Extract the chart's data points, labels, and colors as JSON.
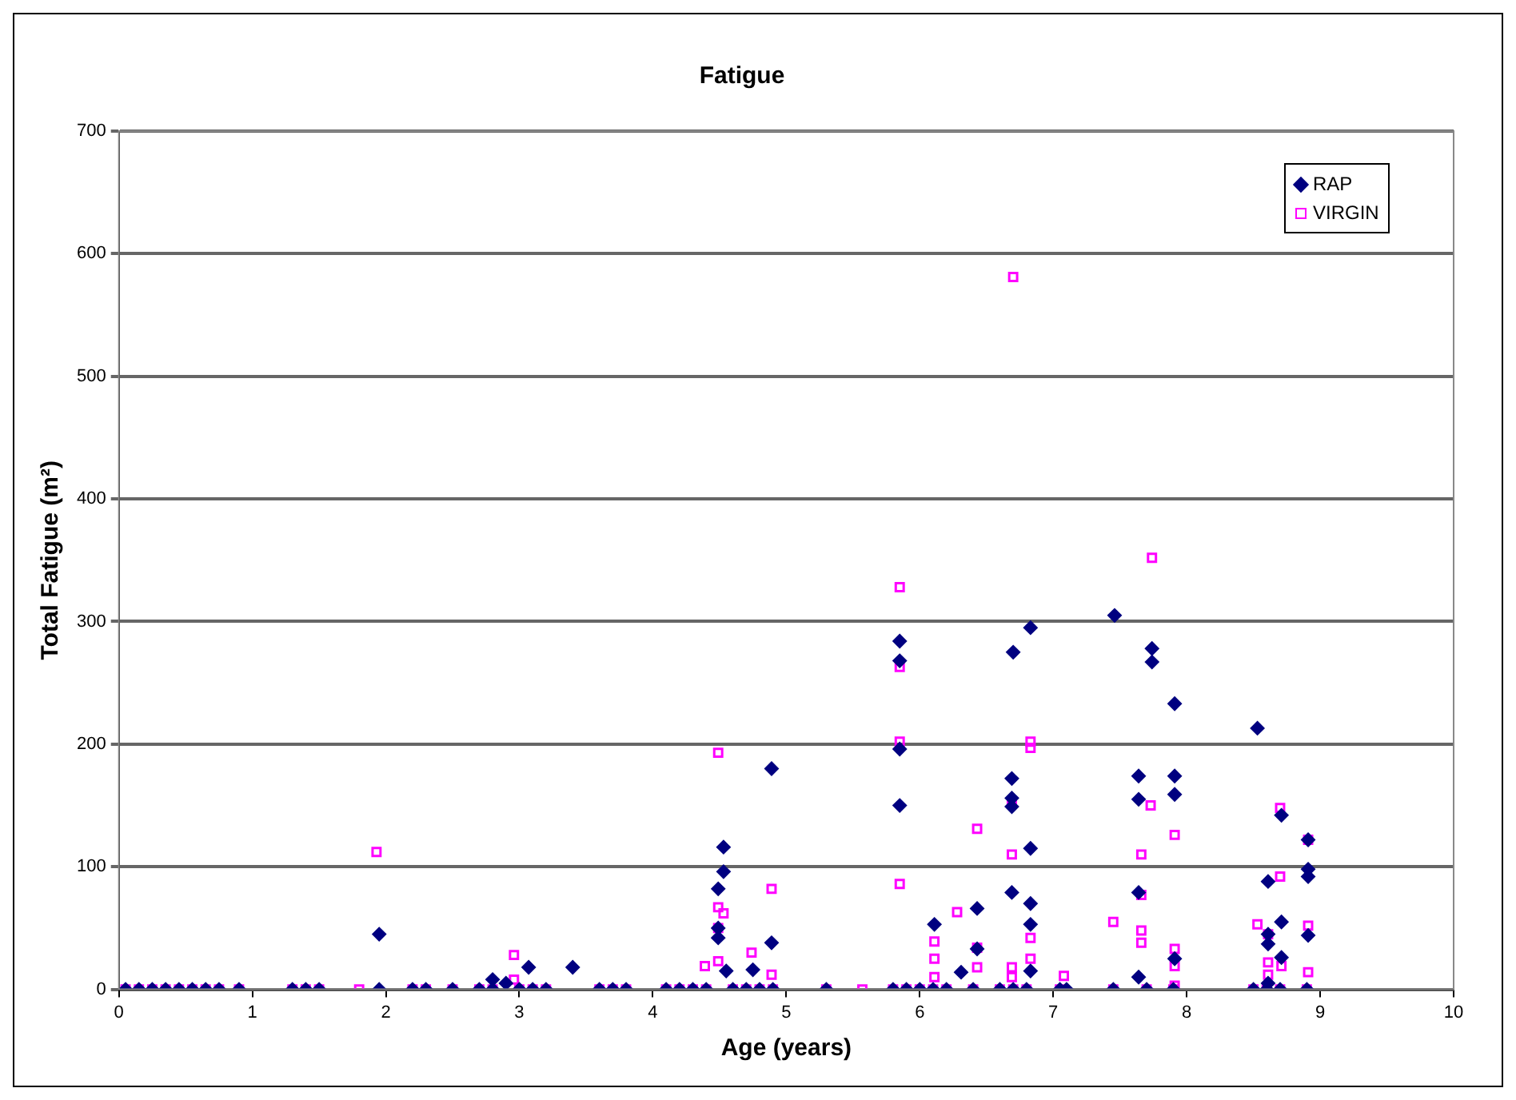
{
  "chart_data": {
    "type": "scatter",
    "title": "Fatigue",
    "xlabel": "Age (years)",
    "ylabel": "Total Fatigue (m²)",
    "xlim": [
      0,
      10
    ],
    "xticks": [
      0,
      1,
      2,
      3,
      4,
      5,
      6,
      7,
      8,
      9,
      10
    ],
    "ylim": [
      0,
      700
    ],
    "yticks": [
      0,
      100,
      200,
      300,
      400,
      500,
      600,
      700
    ],
    "grid": "y",
    "legend": "top right",
    "series": [
      {
        "name": "RAP",
        "color": "#000080",
        "marker": "diamond",
        "x": [
          0.05,
          0.15,
          0.25,
          0.35,
          0.45,
          0.55,
          0.65,
          0.75,
          0.9,
          1.3,
          1.4,
          1.5,
          1.95,
          2.2,
          2.3,
          2.5,
          2.7,
          2.8,
          3.0,
          3.1,
          3.2,
          3.6,
          3.7,
          3.8,
          4.1,
          4.2,
          4.3,
          4.4,
          4.6,
          4.7,
          4.8,
          4.9,
          5.3,
          5.8,
          5.9,
          6.0,
          6.1,
          6.2,
          6.4,
          6.6,
          6.7,
          6.8,
          7.05,
          7.1,
          7.45,
          7.7,
          7.9,
          8.5,
          8.6,
          8.7,
          8.9,
          1.95,
          2.8,
          2.9,
          3.07,
          3.4,
          4.53,
          4.53,
          4.49,
          4.49,
          4.49,
          4.55,
          4.75,
          4.89,
          4.89,
          5.85,
          5.85,
          5.85,
          5.85,
          6.11,
          6.43,
          6.31,
          6.43,
          6.7,
          6.83,
          6.69,
          6.69,
          6.69,
          6.83,
          6.69,
          6.83,
          6.83,
          6.83,
          7.46,
          7.74,
          7.74,
          7.64,
          7.64,
          7.64,
          7.64,
          7.91,
          7.91,
          7.91,
          7.91,
          8.53,
          8.61,
          8.71,
          8.71,
          8.61,
          8.61,
          8.71,
          8.91,
          8.91,
          8.91,
          8.91,
          8.61
        ],
        "values": [
          0,
          0,
          0,
          0,
          0,
          0,
          0,
          0,
          0,
          0,
          0,
          0,
          0,
          0,
          0,
          0,
          0,
          0,
          0,
          0,
          0,
          0,
          0,
          0,
          0,
          0,
          0,
          0,
          0,
          0,
          0,
          0,
          0,
          0,
          0,
          0,
          0,
          0,
          0,
          0,
          0,
          0,
          0,
          0,
          0,
          0,
          0,
          0,
          0,
          0,
          0,
          45,
          8,
          5,
          18,
          18,
          116,
          96,
          82,
          50,
          42,
          15,
          16,
          180,
          38,
          284,
          268,
          196,
          150,
          53,
          66,
          14,
          33,
          275,
          295,
          172,
          156,
          149,
          115,
          79,
          70,
          53,
          15,
          305,
          278,
          267,
          174,
          155,
          79,
          10,
          233,
          174,
          159,
          25,
          213,
          88,
          142,
          55,
          45,
          37,
          26,
          122,
          98,
          92,
          44,
          5
        ]
      },
      {
        "name": "VIRGIN",
        "color": "#ff00ff",
        "marker": "square",
        "x": [
          0.05,
          0.15,
          0.25,
          0.35,
          0.45,
          0.55,
          0.65,
          0.75,
          0.9,
          1.3,
          1.4,
          1.5,
          1.8,
          2.2,
          2.3,
          2.5,
          2.7,
          2.8,
          3.0,
          3.1,
          3.2,
          3.6,
          3.7,
          3.8,
          4.1,
          4.2,
          4.3,
          4.4,
          4.6,
          4.7,
          4.8,
          4.9,
          5.3,
          5.57,
          5.8,
          5.9,
          6.0,
          6.1,
          6.2,
          6.4,
          6.6,
          6.7,
          6.8,
          7.05,
          7.45,
          7.7,
          7.9,
          8.5,
          8.6,
          8.7,
          8.9,
          1.93,
          2.96,
          2.96,
          4.49,
          4.89,
          4.49,
          4.53,
          4.49,
          4.74,
          4.49,
          4.39,
          4.89,
          5.85,
          5.85,
          5.85,
          5.85,
          6.7,
          7.74,
          6.83,
          6.83,
          6.69,
          7.73,
          6.43,
          6.69,
          7.66,
          6.28,
          6.11,
          6.11,
          6.43,
          6.43,
          6.11,
          7.45,
          7.66,
          7.66,
          7.66,
          6.83,
          6.83,
          6.69,
          7.08,
          6.69,
          7.91,
          7.91,
          7.91,
          7.91,
          8.7,
          8.7,
          8.53,
          8.61,
          8.61,
          8.71,
          8.91,
          8.91,
          8.91,
          8.61
        ],
        "values": [
          0,
          0,
          0,
          0,
          0,
          0,
          0,
          0,
          0,
          0,
          0,
          0,
          0,
          0,
          0,
          0,
          0,
          0,
          0,
          0,
          0,
          0,
          0,
          0,
          0,
          0,
          0,
          0,
          0,
          0,
          0,
          0,
          0,
          0,
          0,
          0,
          0,
          0,
          0,
          0,
          0,
          0,
          0,
          0,
          0,
          0,
          0,
          0,
          0,
          0,
          0,
          112,
          28,
          8,
          193,
          82,
          67,
          62,
          50,
          30,
          23,
          19,
          12,
          328,
          263,
          202,
          86,
          581,
          352,
          202,
          197,
          152,
          150,
          131,
          110,
          110,
          63,
          39,
          25,
          18,
          34,
          10,
          55,
          77,
          48,
          38,
          42,
          25,
          18,
          11,
          10,
          126,
          33,
          19,
          3,
          148,
          92,
          53,
          45,
          22,
          19,
          122,
          52,
          14,
          12
        ]
      }
    ]
  }
}
